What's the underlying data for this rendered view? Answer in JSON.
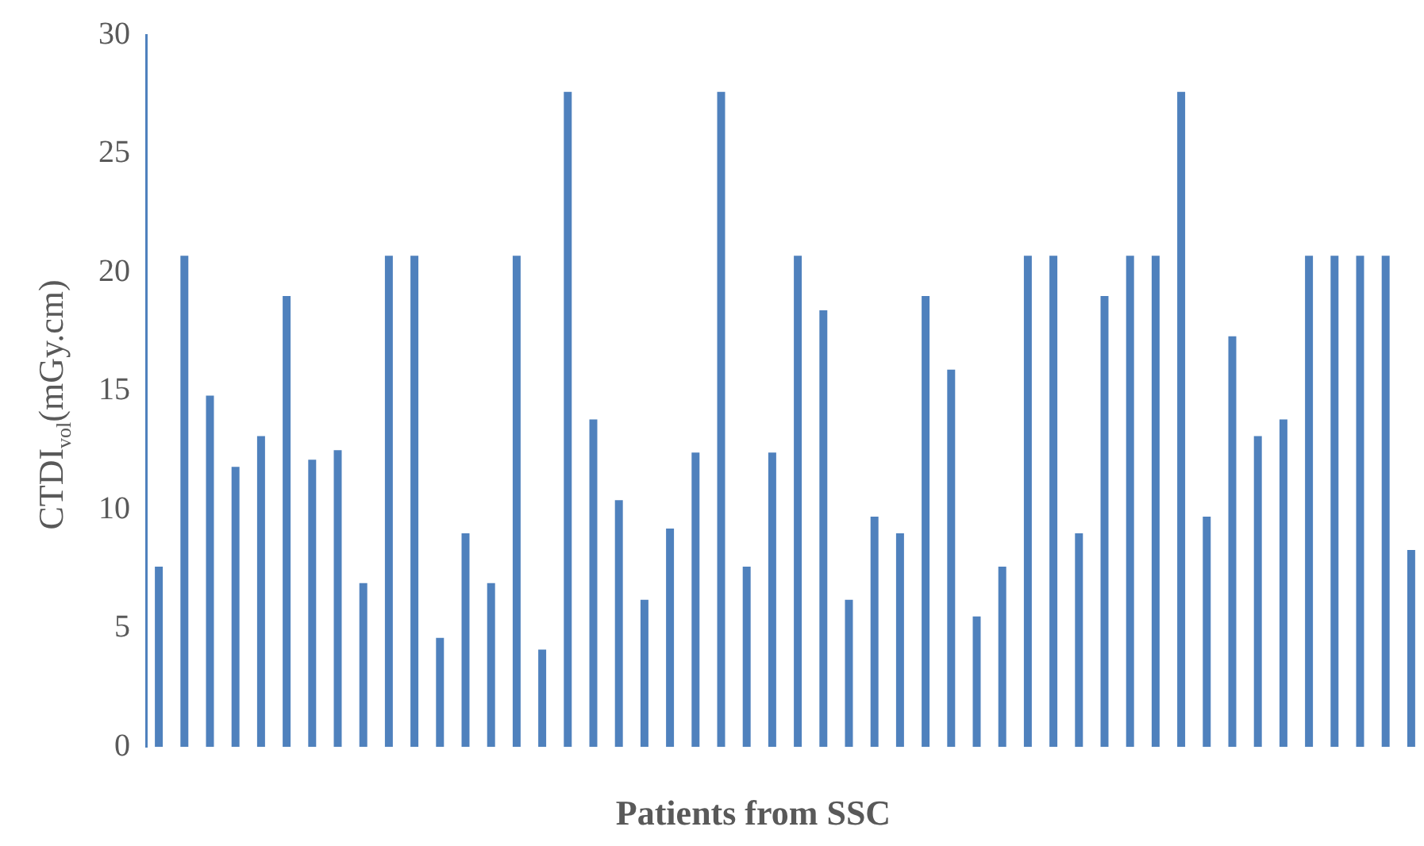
{
  "chart_data": {
    "type": "bar",
    "xlabel": "Patients from SSC",
    "ylabel": "CTDI$_{vol}$(mGy.cm)",
    "categories": [
      null,
      null,
      null,
      null,
      null,
      null,
      null,
      null,
      null,
      null,
      null,
      null,
      null,
      null,
      null,
      null,
      null,
      null,
      null,
      null,
      null,
      null,
      null,
      null,
      null,
      null,
      null,
      null,
      null,
      null,
      null,
      null,
      null,
      null,
      null,
      null,
      null,
      null,
      null,
      null,
      null,
      null,
      null,
      null,
      null,
      null,
      null,
      null,
      null,
      null
    ],
    "values": [
      7.6,
      20.7,
      14.8,
      11.8,
      13.1,
      19,
      12.1,
      12.5,
      6.9,
      20.7,
      20.7,
      4.6,
      9,
      6.9,
      20.7,
      4.1,
      27.6,
      13.8,
      10.4,
      6.2,
      9.2,
      12.4,
      27.6,
      7.6,
      12.4,
      20.7,
      18.4,
      6.2,
      9.7,
      9,
      19,
      15.9,
      5.5,
      7.6,
      20.7,
      20.7,
      9,
      19,
      20.7,
      20.7,
      27.6,
      9.7,
      17.3,
      13.1,
      13.8,
      20.7,
      20.7,
      20.7,
      20.7,
      8.3
    ],
    "color": "#4f81bd",
    "ylim": [
      0,
      30
    ],
    "yticks": [
      0,
      5,
      10,
      15,
      20,
      25,
      30
    ],
    "grid": false,
    "legend": false
  }
}
